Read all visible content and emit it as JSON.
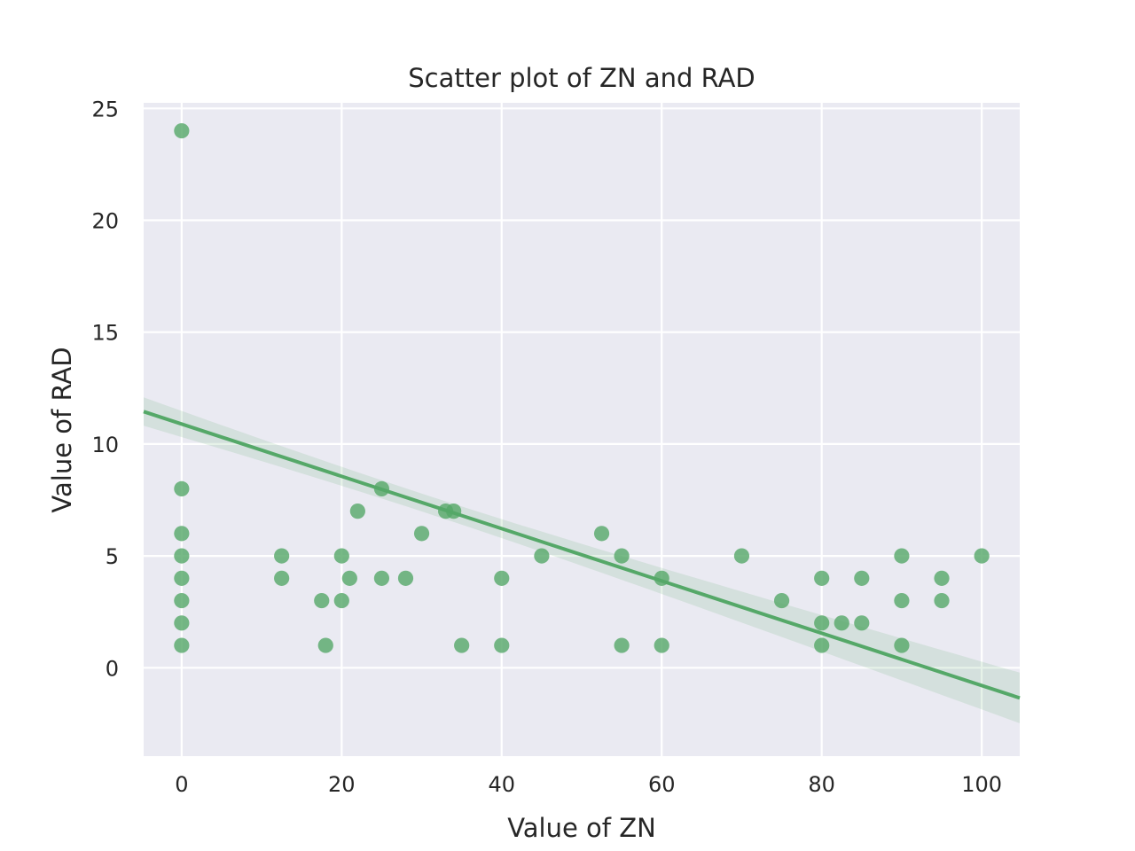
{
  "chart_data": {
    "type": "scatter",
    "title": "Scatter plot of ZN and RAD",
    "xlabel": "Value of ZN",
    "ylabel": "Value of RAD",
    "xlim": [
      -4.75,
      104.75
    ],
    "ylim": [
      -3.95,
      25.25
    ],
    "xticks": [
      0,
      20,
      40,
      60,
      80,
      100
    ],
    "yticks": [
      0,
      5,
      10,
      15,
      20,
      25
    ],
    "grid": true,
    "colors": {
      "background": "#eaeaf2",
      "grid": "#ffffff",
      "series": "#55a868"
    },
    "points": [
      [
        0,
        24
      ],
      [
        0,
        8
      ],
      [
        0,
        6
      ],
      [
        0,
        5
      ],
      [
        0,
        4
      ],
      [
        0,
        3
      ],
      [
        0,
        2
      ],
      [
        0,
        1
      ],
      [
        12.5,
        5
      ],
      [
        12.5,
        4
      ],
      [
        17.5,
        3
      ],
      [
        18,
        1
      ],
      [
        20,
        5
      ],
      [
        20,
        3
      ],
      [
        21,
        4
      ],
      [
        22,
        7
      ],
      [
        25,
        8
      ],
      [
        25,
        4
      ],
      [
        28,
        4
      ],
      [
        30,
        6
      ],
      [
        33,
        7
      ],
      [
        34,
        7
      ],
      [
        35,
        1
      ],
      [
        40,
        4
      ],
      [
        40,
        1
      ],
      [
        45,
        5
      ],
      [
        52.5,
        6
      ],
      [
        55,
        5
      ],
      [
        55,
        1
      ],
      [
        60,
        4
      ],
      [
        60,
        1
      ],
      [
        70,
        5
      ],
      [
        75,
        3
      ],
      [
        80,
        4
      ],
      [
        80,
        2
      ],
      [
        80,
        1
      ],
      [
        82.5,
        2
      ],
      [
        85,
        4
      ],
      [
        85,
        2
      ],
      [
        90,
        5
      ],
      [
        90,
        3
      ],
      [
        90,
        1
      ],
      [
        95,
        4
      ],
      [
        95,
        3
      ],
      [
        100,
        5
      ]
    ],
    "regression": {
      "x_start": -4.75,
      "y_start": 11.45,
      "x_end": 104.75,
      "y_end": -1.35
    }
  }
}
